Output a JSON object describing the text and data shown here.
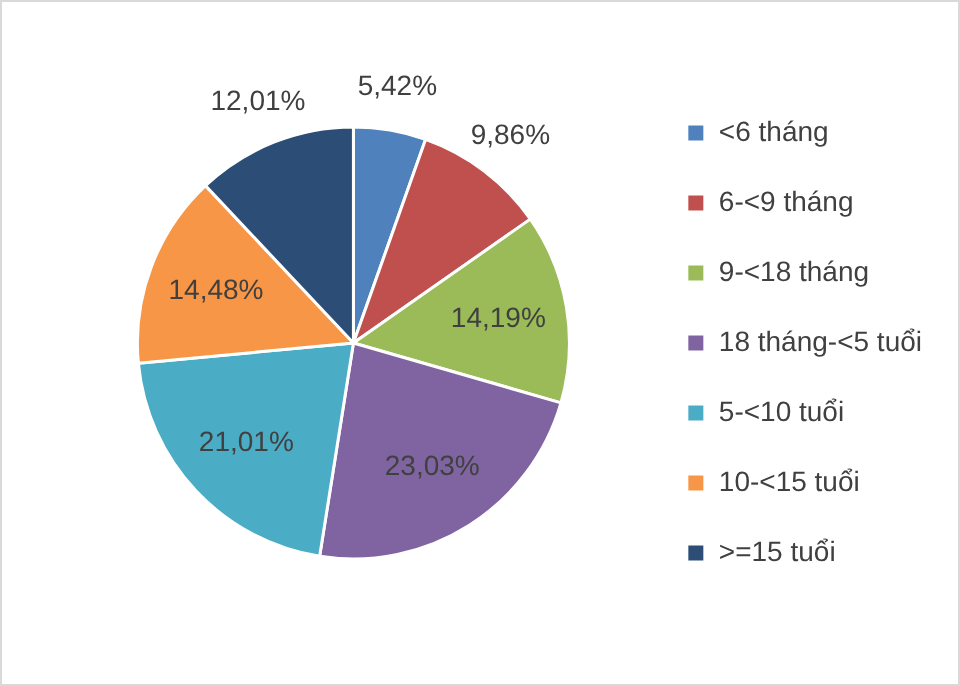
{
  "chart_data": {
    "type": "pie",
    "categories": [
      "<6 tháng",
      "6-<9 tháng",
      "9-<18 tháng",
      "18 tháng-<5 tuổi",
      "5-<10 tuổi",
      "10-<15 tuổi",
      ">=15 tuổi"
    ],
    "values": [
      5.42,
      9.86,
      14.19,
      23.03,
      21.01,
      14.48,
      12.01
    ],
    "colors": [
      "#4f81bd",
      "#c0504d",
      "#9bbb59",
      "#8064a2",
      "#4bacc6",
      "#f79646",
      "#2c4d75"
    ],
    "value_labels": [
      "5,42%",
      "9,86%",
      "14,19%",
      "23,03%",
      "21,01%",
      "14,48%",
      "12,01%"
    ],
    "legend": "right"
  }
}
